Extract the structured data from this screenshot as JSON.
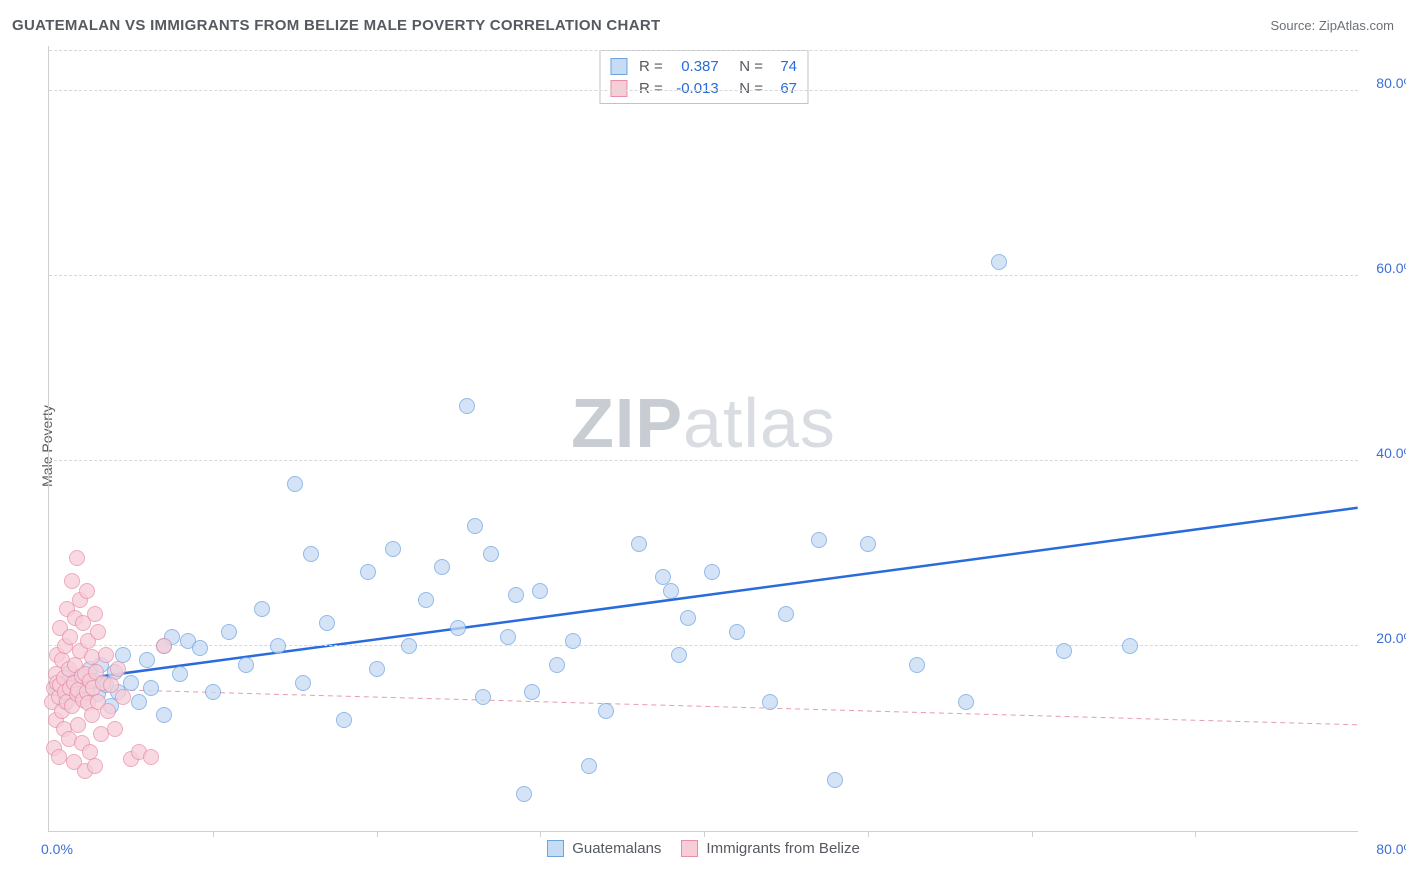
{
  "header": {
    "title": "GUATEMALAN VS IMMIGRANTS FROM BELIZE MALE POVERTY CORRELATION CHART",
    "source": "Source: ZipAtlas.com"
  },
  "chart": {
    "type": "scatter",
    "ylabel": "Male Poverty",
    "watermark": {
      "bold": "ZIP",
      "rest": "atlas"
    },
    "background_color": "#ffffff",
    "grid_color": "#d8d8d8",
    "axis_color": "#cfcfcf",
    "tick_label_color": "#3b6fd6",
    "xlim": [
      0,
      80
    ],
    "ylim": [
      0,
      85
    ],
    "yticks": [
      20,
      40,
      60,
      80
    ],
    "ytick_labels": [
      "20.0%",
      "40.0%",
      "60.0%",
      "80.0%"
    ],
    "xtick_positions": [
      10,
      20,
      30,
      40,
      50,
      60,
      70
    ],
    "xtick_left_label": "0.0%",
    "xtick_right_label": "80.0%",
    "marker_radius": 8,
    "marker_border_width": 1,
    "series": [
      {
        "name": "Guatemalans",
        "fill": "#c6dbf4",
        "stroke": "#6fa3e0",
        "fill_opacity": 0.75,
        "trend": {
          "x1": 0,
          "y1": 16.0,
          "x2": 80,
          "y2": 35.0,
          "stroke": "#2a6bdc",
          "width": 2.5,
          "dash": "none"
        },
        "stats": {
          "R": "0.387",
          "N": "74"
        },
        "points": [
          [
            0.5,
            15.5
          ],
          [
            0.8,
            16.0
          ],
          [
            1.0,
            14.0
          ],
          [
            1.2,
            17.0
          ],
          [
            1.5,
            15.0
          ],
          [
            1.8,
            16.5
          ],
          [
            2.0,
            14.5
          ],
          [
            2.2,
            15.2
          ],
          [
            2.5,
            17.5
          ],
          [
            2.8,
            16.2
          ],
          [
            3.0,
            14.8
          ],
          [
            3.2,
            18.0
          ],
          [
            3.5,
            15.8
          ],
          [
            3.8,
            13.5
          ],
          [
            4.0,
            17.2
          ],
          [
            4.2,
            15.0
          ],
          [
            4.5,
            19.0
          ],
          [
            5.0,
            16.0
          ],
          [
            5.5,
            14.0
          ],
          [
            6.0,
            18.5
          ],
          [
            6.2,
            15.5
          ],
          [
            7.0,
            20.0
          ],
          [
            7.0,
            12.5
          ],
          [
            7.5,
            21.0
          ],
          [
            8.0,
            17.0
          ],
          [
            8.5,
            20.5
          ],
          [
            9.2,
            19.8
          ],
          [
            10.0,
            15.0
          ],
          [
            11.0,
            21.5
          ],
          [
            12.0,
            18.0
          ],
          [
            13.0,
            24.0
          ],
          [
            14.0,
            20.0
          ],
          [
            15.0,
            37.5
          ],
          [
            15.5,
            16.0
          ],
          [
            16.0,
            30.0
          ],
          [
            17.0,
            22.5
          ],
          [
            18.0,
            12.0
          ],
          [
            19.5,
            28.0
          ],
          [
            20.0,
            17.5
          ],
          [
            21.0,
            30.5
          ],
          [
            22.0,
            20.0
          ],
          [
            23.0,
            25.0
          ],
          [
            24.0,
            28.5
          ],
          [
            25.0,
            22.0
          ],
          [
            25.5,
            46.0
          ],
          [
            26.0,
            33.0
          ],
          [
            26.5,
            14.5
          ],
          [
            27.0,
            30.0
          ],
          [
            28.0,
            21.0
          ],
          [
            28.5,
            25.5
          ],
          [
            29.0,
            4.0
          ],
          [
            29.5,
            15.0
          ],
          [
            30.0,
            26.0
          ],
          [
            31.0,
            18.0
          ],
          [
            32.0,
            20.5
          ],
          [
            33.0,
            7.0
          ],
          [
            34.0,
            13.0
          ],
          [
            36.0,
            31.0
          ],
          [
            37.5,
            27.5
          ],
          [
            38.0,
            26.0
          ],
          [
            38.5,
            19.0
          ],
          [
            39.0,
            23.0
          ],
          [
            40.5,
            28.0
          ],
          [
            42.0,
            21.5
          ],
          [
            44.0,
            14.0
          ],
          [
            45.0,
            23.5
          ],
          [
            47.0,
            31.5
          ],
          [
            48.0,
            5.5
          ],
          [
            50.0,
            31.0
          ],
          [
            53.0,
            18.0
          ],
          [
            56.0,
            14.0
          ],
          [
            58.0,
            61.5
          ],
          [
            62.0,
            19.5
          ],
          [
            66.0,
            20.0
          ]
        ]
      },
      {
        "name": "Immigrants from Belize",
        "fill": "#f7cdd8",
        "stroke": "#e78fa8",
        "fill_opacity": 0.75,
        "trend": {
          "x1": 0,
          "y1": 15.5,
          "x2": 80,
          "y2": 11.5,
          "stroke": "#e79bb0",
          "width": 1,
          "dash": "5 4"
        },
        "stats": {
          "R": "-0.013",
          "N": "67"
        },
        "points": [
          [
            0.2,
            14.0
          ],
          [
            0.3,
            15.5
          ],
          [
            0.3,
            9.0
          ],
          [
            0.4,
            17.0
          ],
          [
            0.4,
            12.0
          ],
          [
            0.5,
            16.0
          ],
          [
            0.5,
            19.0
          ],
          [
            0.6,
            14.5
          ],
          [
            0.6,
            8.0
          ],
          [
            0.7,
            15.8
          ],
          [
            0.7,
            22.0
          ],
          [
            0.8,
            13.0
          ],
          [
            0.8,
            18.5
          ],
          [
            0.9,
            16.5
          ],
          [
            0.9,
            11.0
          ],
          [
            1.0,
            15.0
          ],
          [
            1.0,
            20.0
          ],
          [
            1.1,
            14.0
          ],
          [
            1.1,
            24.0
          ],
          [
            1.2,
            17.5
          ],
          [
            1.2,
            10.0
          ],
          [
            1.3,
            15.5
          ],
          [
            1.3,
            21.0
          ],
          [
            1.4,
            13.5
          ],
          [
            1.4,
            27.0
          ],
          [
            1.5,
            16.0
          ],
          [
            1.5,
            7.5
          ],
          [
            1.6,
            18.0
          ],
          [
            1.6,
            23.0
          ],
          [
            1.7,
            14.8
          ],
          [
            1.7,
            29.5
          ],
          [
            1.8,
            15.2
          ],
          [
            1.8,
            11.5
          ],
          [
            1.9,
            19.5
          ],
          [
            1.9,
            25.0
          ],
          [
            2.0,
            16.8
          ],
          [
            2.0,
            9.5
          ],
          [
            2.1,
            14.2
          ],
          [
            2.1,
            22.5
          ],
          [
            2.2,
            17.0
          ],
          [
            2.2,
            6.5
          ],
          [
            2.3,
            15.0
          ],
          [
            2.3,
            26.0
          ],
          [
            2.4,
            13.8
          ],
          [
            2.4,
            20.5
          ],
          [
            2.5,
            16.2
          ],
          [
            2.5,
            8.5
          ],
          [
            2.6,
            18.8
          ],
          [
            2.6,
            12.5
          ],
          [
            2.7,
            15.5
          ],
          [
            2.8,
            23.5
          ],
          [
            2.8,
            7.0
          ],
          [
            2.9,
            17.2
          ],
          [
            3.0,
            14.0
          ],
          [
            3.0,
            21.5
          ],
          [
            3.2,
            10.5
          ],
          [
            3.3,
            16.0
          ],
          [
            3.5,
            19.0
          ],
          [
            3.6,
            13.0
          ],
          [
            3.8,
            15.8
          ],
          [
            4.0,
            11.0
          ],
          [
            4.2,
            17.5
          ],
          [
            4.5,
            14.5
          ],
          [
            5.0,
            7.8
          ],
          [
            5.5,
            8.5
          ],
          [
            6.2,
            8.0
          ],
          [
            7.0,
            20.0
          ]
        ]
      }
    ],
    "stats_legend": {
      "border_color": "#bfc4ca",
      "label_color": "#555a60",
      "value_color": "#2a6bdc",
      "r_label": "R  =",
      "n_label": "N  ="
    },
    "bottom_legend": {
      "label_color": "#555a60"
    }
  }
}
